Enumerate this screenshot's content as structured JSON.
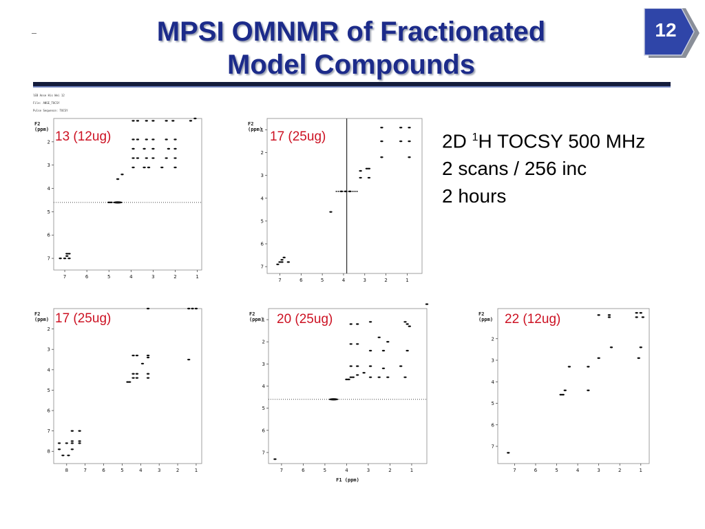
{
  "slide": {
    "title_line1": "MPSI OMNMR of Fractionated",
    "title_line2": "Model Compounds",
    "page_number": "12",
    "colors": {
      "title": "#1c2b8a",
      "badge": "#2f45a8",
      "label": "#cc1122"
    }
  },
  "info": {
    "line1_prefix": "2D ",
    "line1_sup": "1",
    "line1_suffix": "H TOCSY 500 MHz",
    "line2": "2 scans / 256 inc",
    "line3": "2 hours"
  },
  "header_text": {
    "l1": "lEB Anse His Wei 12",
    "l2": "File: ANSE_TOCSY",
    "l3": "Pulse Sequence: TOCSY"
  },
  "chart_data": [
    {
      "type": "scatter",
      "label": "13 (12ug)",
      "ylabel": "F2 (ppm)",
      "xlabel": "",
      "x_ticks": [
        "7",
        "6",
        "5",
        "4",
        "3",
        "2",
        "1"
      ],
      "y_ticks": [
        "2",
        "3",
        "4",
        "5",
        "6",
        "7"
      ],
      "xlim": [
        7.5,
        0.8
      ],
      "ylim": [
        1.0,
        7.5
      ],
      "points": [
        [
          3.9,
          1.1
        ],
        [
          3.7,
          1.1
        ],
        [
          3.3,
          1.1
        ],
        [
          3.0,
          1.1
        ],
        [
          2.4,
          1.1
        ],
        [
          2.1,
          1.1
        ],
        [
          1.3,
          1.1
        ],
        [
          1.1,
          1.0
        ],
        [
          3.9,
          1.9
        ],
        [
          3.7,
          1.9
        ],
        [
          3.3,
          1.9
        ],
        [
          3.0,
          1.9
        ],
        [
          2.4,
          1.9
        ],
        [
          2.0,
          1.9
        ],
        [
          3.9,
          2.3
        ],
        [
          3.4,
          2.3
        ],
        [
          3.0,
          2.3
        ],
        [
          2.3,
          2.3
        ],
        [
          2.0,
          2.3
        ],
        [
          3.9,
          2.7
        ],
        [
          3.7,
          2.7
        ],
        [
          3.3,
          2.7
        ],
        [
          3.0,
          2.7
        ],
        [
          2.4,
          2.7
        ],
        [
          2.0,
          2.7
        ],
        [
          3.9,
          3.1
        ],
        [
          3.4,
          3.1
        ],
        [
          3.2,
          3.1
        ],
        [
          2.6,
          3.1
        ],
        [
          2.0,
          3.1
        ],
        [
          4.4,
          3.4
        ],
        [
          4.6,
          3.6
        ],
        [
          5.0,
          4.6
        ],
        [
          4.9,
          4.6
        ],
        [
          7.2,
          7.0
        ],
        [
          7.0,
          7.0
        ],
        [
          6.9,
          6.8
        ],
        [
          6.8,
          7.0
        ],
        [
          6.9,
          6.9
        ],
        [
          6.8,
          6.8
        ]
      ],
      "water_ppm": 4.6
    },
    {
      "type": "scatter",
      "label": "17 (25ug)",
      "ylabel": "F2 (ppm)",
      "xlabel": "",
      "x_ticks": [
        "7",
        "6",
        "5",
        "4",
        "3",
        "2",
        "1"
      ],
      "y_ticks": [
        "1",
        "2",
        "3",
        "4",
        "5",
        "6",
        "7"
      ],
      "xlim": [
        7.6,
        0.3
      ],
      "ylim": [
        0.5,
        7.3
      ],
      "points": [
        [
          2.2,
          0.9
        ],
        [
          1.3,
          0.9
        ],
        [
          0.9,
          0.9
        ],
        [
          2.2,
          1.5
        ],
        [
          1.3,
          1.5
        ],
        [
          0.9,
          1.5
        ],
        [
          2.2,
          2.2
        ],
        [
          0.9,
          2.2
        ],
        [
          2.9,
          2.7
        ],
        [
          2.8,
          2.7
        ],
        [
          3.2,
          2.8
        ],
        [
          2.8,
          3.1
        ],
        [
          3.2,
          3.1
        ],
        [
          3.9,
          3.7
        ],
        [
          3.7,
          3.7
        ],
        [
          4.1,
          3.7
        ],
        [
          4.6,
          4.6
        ],
        [
          7.0,
          6.8
        ],
        [
          6.9,
          6.7
        ],
        [
          6.8,
          6.6
        ],
        [
          7.1,
          6.9
        ],
        [
          6.9,
          6.8
        ],
        [
          6.6,
          6.8
        ]
      ],
      "vertical_line_ppm": 3.85
    },
    {
      "type": "scatter",
      "label": "17 (25ug)",
      "ylabel": "F2 (ppm)",
      "xlabel": "",
      "x_ticks": [
        "8",
        "7",
        "6",
        "5",
        "4",
        "3",
        "2",
        "1"
      ],
      "y_ticks": [
        "2",
        "3",
        "4",
        "5",
        "6",
        "7",
        "8"
      ],
      "xlim": [
        8.7,
        0.7
      ],
      "ylim": [
        1.0,
        8.6
      ],
      "points": [
        [
          3.6,
          1.0
        ],
        [
          1.4,
          1.0
        ],
        [
          1.2,
          1.0
        ],
        [
          1.0,
          1.0
        ],
        [
          4.4,
          3.3
        ],
        [
          4.2,
          3.3
        ],
        [
          3.6,
          3.3
        ],
        [
          3.6,
          3.4
        ],
        [
          1.4,
          3.5
        ],
        [
          3.9,
          3.7
        ],
        [
          4.4,
          4.2
        ],
        [
          4.2,
          4.2
        ],
        [
          3.6,
          4.2
        ],
        [
          4.4,
          4.4
        ],
        [
          4.2,
          4.4
        ],
        [
          3.6,
          4.4
        ],
        [
          4.7,
          4.6
        ],
        [
          4.6,
          4.6
        ],
        [
          8.4,
          7.6
        ],
        [
          8.0,
          7.6
        ],
        [
          7.7,
          7.5
        ],
        [
          7.7,
          7.6
        ],
        [
          7.3,
          7.6
        ],
        [
          7.7,
          7.0
        ],
        [
          7.3,
          7.0
        ],
        [
          8.4,
          7.9
        ],
        [
          7.7,
          7.9
        ],
        [
          8.2,
          8.2
        ],
        [
          7.9,
          8.2
        ],
        [
          7.3,
          7.5
        ]
      ]
    },
    {
      "type": "scatter",
      "label": "20 (25ug)",
      "ylabel": "F2 (ppm)",
      "xlabel": "F1 (ppm)",
      "x_ticks": [
        "7",
        "6",
        "5",
        "4",
        "3",
        "2",
        "1"
      ],
      "y_ticks": [
        "1",
        "2",
        "3",
        "4",
        "5",
        "6",
        "7"
      ],
      "xlim": [
        7.6,
        0.3
      ],
      "ylim": [
        0.5,
        7.5
      ],
      "points": [
        [
          3.8,
          1.2
        ],
        [
          3.5,
          1.2
        ],
        [
          2.9,
          1.1
        ],
        [
          1.3,
          1.1
        ],
        [
          1.2,
          1.2
        ],
        [
          1.1,
          1.3
        ],
        [
          2.5,
          1.8
        ],
        [
          2.1,
          2.0
        ],
        [
          3.8,
          2.1
        ],
        [
          3.5,
          2.1
        ],
        [
          2.9,
          2.4
        ],
        [
          2.3,
          2.4
        ],
        [
          1.2,
          2.4
        ],
        [
          3.8,
          3.1
        ],
        [
          3.5,
          3.1
        ],
        [
          2.9,
          3.1
        ],
        [
          2.3,
          3.2
        ],
        [
          1.5,
          3.1
        ],
        [
          3.8,
          3.6
        ],
        [
          3.5,
          3.5
        ],
        [
          2.9,
          3.6
        ],
        [
          2.5,
          3.6
        ],
        [
          2.1,
          3.6
        ],
        [
          1.3,
          3.6
        ],
        [
          3.9,
          3.7
        ],
        [
          4.0,
          3.7
        ],
        [
          3.7,
          3.6
        ],
        [
          3.2,
          3.4
        ],
        [
          0.3,
          0.3
        ],
        [
          7.3,
          7.3
        ]
      ],
      "water_ppm": 4.6
    },
    {
      "type": "scatter",
      "label": "22 (12ug)",
      "ylabel": "F2 (ppm)",
      "xlabel": "",
      "x_ticks": [
        "7",
        "6",
        "5",
        "4",
        "3",
        "2",
        "1"
      ],
      "y_ticks": [
        "2",
        "3",
        "4",
        "5",
        "6",
        "7"
      ],
      "xlim": [
        7.8,
        0.6
      ],
      "ylim": [
        0.6,
        7.8
      ],
      "points": [
        [
          3.0,
          0.9
        ],
        [
          2.5,
          0.9
        ],
        [
          1.2,
          0.8
        ],
        [
          1.0,
          0.8
        ],
        [
          2.5,
          1.0
        ],
        [
          1.2,
          1.0
        ],
        [
          0.9,
          1.0
        ],
        [
          2.4,
          2.4
        ],
        [
          1.0,
          2.4
        ],
        [
          3.0,
          2.9
        ],
        [
          1.1,
          2.9
        ],
        [
          4.4,
          3.3
        ],
        [
          3.5,
          3.3
        ],
        [
          4.6,
          4.4
        ],
        [
          3.5,
          4.4
        ],
        [
          4.8,
          4.6
        ],
        [
          4.7,
          4.6
        ],
        [
          7.3,
          7.3
        ]
      ]
    }
  ]
}
